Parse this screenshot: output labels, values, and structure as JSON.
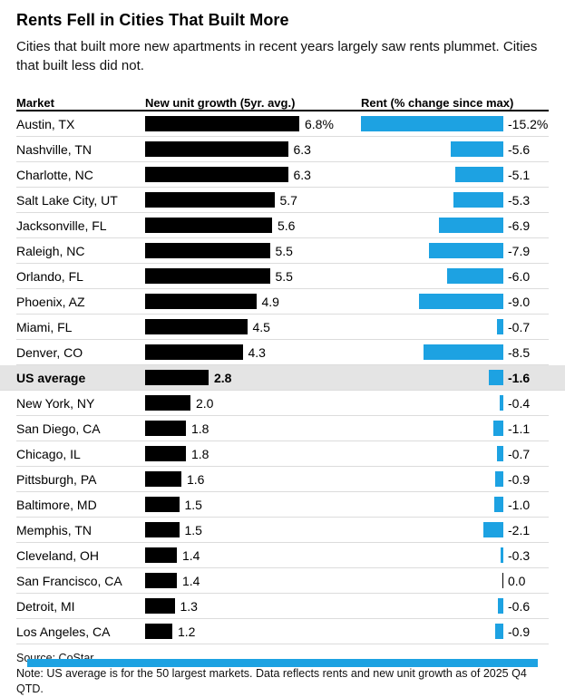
{
  "colors": {
    "bar_black": "#000000",
    "bar_blue": "#1da2e2",
    "highlight_row_bg": "#e4e4e4"
  },
  "header": {
    "title": "Rents Fell in Cities That Built More",
    "subtitle": "Cities that built more new apartments in recent years largely saw rents plummet. Cities that built less did not."
  },
  "columns": {
    "market": "Market",
    "growth": "New unit growth (5yr. avg.)",
    "rent": "Rent (% change since max)"
  },
  "footer": {
    "source": "Source: CoStar",
    "note": "Note: US average is for the 50 largest markets. Data reflects rents and new unit growth as of 2025 Q4 QTD."
  },
  "chart_data": {
    "type": "bar",
    "orientation": "horizontal",
    "categories": [
      "Austin, TX",
      "Nashville, TN",
      "Charlotte, NC",
      "Salt Lake City, UT",
      "Jacksonville, FL",
      "Raleigh, NC",
      "Orlando, FL",
      "Phoenix, AZ",
      "Miami, FL",
      "Denver, CO",
      "US average",
      "New York, NY",
      "San Diego, CA",
      "Chicago, IL",
      "Pittsburgh, PA",
      "Baltimore, MD",
      "Memphis, TN",
      "Cleveland, OH",
      "San Francisco, CA",
      "Detroit, MI",
      "Los Angeles, CA"
    ],
    "series": [
      {
        "name": "New unit growth (5yr. avg.)",
        "unit": "%",
        "color": "#000000",
        "values": [
          6.8,
          6.3,
          6.3,
          5.7,
          5.6,
          5.5,
          5.5,
          4.9,
          4.5,
          4.3,
          2.8,
          2.0,
          1.8,
          1.8,
          1.6,
          1.5,
          1.5,
          1.4,
          1.4,
          1.3,
          1.2
        ]
      },
      {
        "name": "Rent (% change since max)",
        "unit": "%",
        "color": "#1da2e2",
        "values": [
          -15.2,
          -5.6,
          -5.1,
          -5.3,
          -6.9,
          -7.9,
          -6.0,
          -9.0,
          -0.7,
          -8.5,
          -1.6,
          -0.4,
          -1.1,
          -0.7,
          -0.9,
          -1.0,
          -2.1,
          -0.3,
          0.0,
          -0.6,
          -0.9
        ]
      }
    ],
    "highlight_category": "US average",
    "growth_axis_range": [
      0,
      6.8
    ],
    "rent_axis_range": [
      -15.2,
      0
    ],
    "grid": false,
    "legend": "none",
    "title": "Rents Fell in Cities That Built More"
  },
  "rows": [
    {
      "market": "Austin, TX",
      "growth": 6.8,
      "growth_label": "6.8%",
      "rent": -15.2,
      "rent_label": "-15.2%",
      "highlight": false
    },
    {
      "market": "Nashville, TN",
      "growth": 6.3,
      "growth_label": "6.3",
      "rent": -5.6,
      "rent_label": "-5.6",
      "highlight": false
    },
    {
      "market": "Charlotte, NC",
      "growth": 6.3,
      "growth_label": "6.3",
      "rent": -5.1,
      "rent_label": "-5.1",
      "highlight": false
    },
    {
      "market": "Salt Lake City, UT",
      "growth": 5.7,
      "growth_label": "5.7",
      "rent": -5.3,
      "rent_label": "-5.3",
      "highlight": false
    },
    {
      "market": "Jacksonville, FL",
      "growth": 5.6,
      "growth_label": "5.6",
      "rent": -6.9,
      "rent_label": "-6.9",
      "highlight": false
    },
    {
      "market": "Raleigh, NC",
      "growth": 5.5,
      "growth_label": "5.5",
      "rent": -7.9,
      "rent_label": "-7.9",
      "highlight": false
    },
    {
      "market": "Orlando, FL",
      "growth": 5.5,
      "growth_label": "5.5",
      "rent": -6.0,
      "rent_label": "-6.0",
      "highlight": false
    },
    {
      "market": "Phoenix, AZ",
      "growth": 4.9,
      "growth_label": "4.9",
      "rent": -9.0,
      "rent_label": "-9.0",
      "highlight": false
    },
    {
      "market": "Miami, FL",
      "growth": 4.5,
      "growth_label": "4.5",
      "rent": -0.7,
      "rent_label": "-0.7",
      "highlight": false
    },
    {
      "market": "Denver, CO",
      "growth": 4.3,
      "growth_label": "4.3",
      "rent": -8.5,
      "rent_label": "-8.5",
      "highlight": false
    },
    {
      "market": "US average",
      "growth": 2.8,
      "growth_label": "2.8",
      "rent": -1.6,
      "rent_label": "-1.6",
      "highlight": true
    },
    {
      "market": "New York, NY",
      "growth": 2.0,
      "growth_label": "2.0",
      "rent": -0.4,
      "rent_label": "-0.4",
      "highlight": false
    },
    {
      "market": "San Diego, CA",
      "growth": 1.8,
      "growth_label": "1.8",
      "rent": -1.1,
      "rent_label": "-1.1",
      "highlight": false
    },
    {
      "market": "Chicago, IL",
      "growth": 1.8,
      "growth_label": "1.8",
      "rent": -0.7,
      "rent_label": "-0.7",
      "highlight": false
    },
    {
      "market": "Pittsburgh, PA",
      "growth": 1.6,
      "growth_label": "1.6",
      "rent": -0.9,
      "rent_label": "-0.9",
      "highlight": false
    },
    {
      "market": "Baltimore, MD",
      "growth": 1.5,
      "growth_label": "1.5",
      "rent": -1.0,
      "rent_label": "-1.0",
      "highlight": false
    },
    {
      "market": "Memphis, TN",
      "growth": 1.5,
      "growth_label": "1.5",
      "rent": -2.1,
      "rent_label": "-2.1",
      "highlight": false
    },
    {
      "market": "Cleveland, OH",
      "growth": 1.4,
      "growth_label": "1.4",
      "rent": -0.3,
      "rent_label": "-0.3",
      "highlight": false
    },
    {
      "market": "San Francisco, CA",
      "growth": 1.4,
      "growth_label": "1.4",
      "rent": 0.0,
      "rent_label": "0.0",
      "highlight": false
    },
    {
      "market": "Detroit, MI",
      "growth": 1.3,
      "growth_label": "1.3",
      "rent": -0.6,
      "rent_label": "-0.6",
      "highlight": false
    },
    {
      "market": "Los Angeles, CA",
      "growth": 1.2,
      "growth_label": "1.2",
      "rent": -0.9,
      "rent_label": "-0.9",
      "highlight": false
    }
  ]
}
